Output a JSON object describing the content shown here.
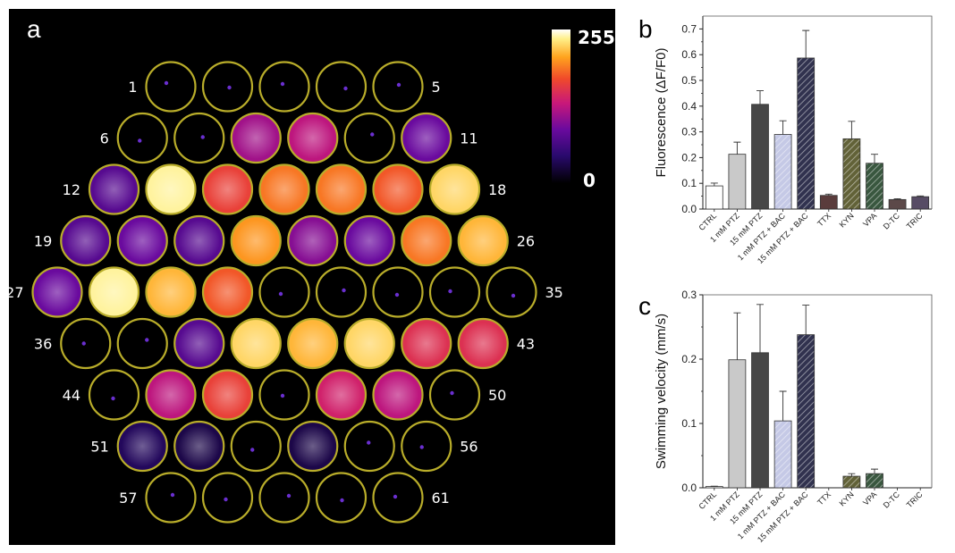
{
  "figure": {
    "panel_a": {
      "letter": "a",
      "colorbar": {
        "max_label": "255",
        "min_label": "0"
      },
      "well_labels": [
        "1",
        "5",
        "6",
        "11",
        "12",
        "18",
        "19",
        "26",
        "27",
        "35",
        "36",
        "43",
        "44",
        "50",
        "51",
        "56",
        "57",
        "61"
      ],
      "rows": [
        5,
        6,
        7,
        8,
        9,
        8,
        7,
        6,
        5
      ],
      "well_intensity": [
        0.02,
        0.05,
        0.04,
        0.1,
        0.03,
        0.08,
        0.02,
        0.45,
        0.5,
        0.02,
        0.35,
        0.3,
        0.95,
        0.65,
        0.75,
        0.75,
        0.7,
        0.9,
        0.3,
        0.35,
        0.3,
        0.8,
        0.4,
        0.35,
        0.75,
        0.85,
        0.35,
        0.95,
        0.85,
        0.7,
        0.02,
        0.04,
        0.04,
        0.02,
        0.03,
        0.06,
        0.0,
        0.3,
        0.9,
        0.85,
        0.9,
        0.6,
        0.6,
        0.04,
        0.5,
        0.65,
        0.06,
        0.55,
        0.5,
        0.08,
        0.15,
        0.12,
        0.1,
        0.12,
        0.04,
        0.02,
        0.03,
        0.03,
        0.04,
        0.02,
        0.03
      ],
      "outline_color": "#b9ad2a"
    },
    "panel_b": {
      "letter": "b"
    },
    "panel_c": {
      "letter": "c"
    }
  },
  "chart_data": [
    {
      "type": "bar",
      "panel": "b",
      "ylabel": "Fluorescence (ΔF/F0)",
      "ylim": [
        0,
        0.75
      ],
      "yticks": [
        "0.0",
        "0.1",
        "0.2",
        "0.3",
        "0.4",
        "0.5",
        "0.6",
        "0.7"
      ],
      "categories": [
        "CTRL",
        "1 mM PTZ",
        "15 mM PTZ",
        "1 mM PTZ + BAC",
        "15 mM PTZ + BAC",
        "TTX",
        "KYN",
        "VPA",
        "D-TC",
        "TRIC"
      ],
      "values": [
        0.09,
        0.213,
        0.407,
        0.29,
        0.587,
        0.053,
        0.273,
        0.178,
        0.037,
        0.048
      ],
      "errors": [
        0.011,
        0.047,
        0.053,
        0.053,
        0.107,
        0.005,
        0.068,
        0.035,
        0.003,
        0.003
      ],
      "bar_colors": [
        "#ffffff",
        "#c9c9c9",
        "#474747",
        "#c5c9e6",
        "#31324f",
        "#5a3c3c",
        "#626238",
        "#39573f",
        "#5c4949",
        "#574c65"
      ],
      "hatched": [
        false,
        false,
        false,
        true,
        true,
        false,
        true,
        true,
        false,
        false
      ]
    },
    {
      "type": "bar",
      "panel": "c",
      "ylabel": "Swimming velocity (mm/s)",
      "ylim": [
        0,
        0.3
      ],
      "yticks": [
        "0.0",
        "0.1",
        "0.2",
        "0.3"
      ],
      "categories": [
        "CTRL",
        "1 mM PTZ",
        "15 mM PTZ",
        "1 mM PTZ + BAC",
        "15 mM PTZ + BAC",
        "TTX",
        "KYN",
        "VPA",
        "D-TC",
        "TRIC"
      ],
      "values": [
        0.002,
        0.199,
        0.21,
        0.104,
        0.238,
        0.0,
        0.018,
        0.022,
        0.0,
        0.0
      ],
      "errors": [
        0.0005,
        0.073,
        0.075,
        0.046,
        0.046,
        0.0,
        0.004,
        0.007,
        0.0,
        0.0
      ],
      "bar_colors": [
        "#ffffff",
        "#c9c9c9",
        "#474747",
        "#c5c9e6",
        "#31324f",
        "#5a3c3c",
        "#626238",
        "#39573f",
        "#5c4949",
        "#574c65"
      ],
      "hatched": [
        false,
        false,
        false,
        true,
        true,
        false,
        true,
        true,
        false,
        false
      ]
    }
  ]
}
